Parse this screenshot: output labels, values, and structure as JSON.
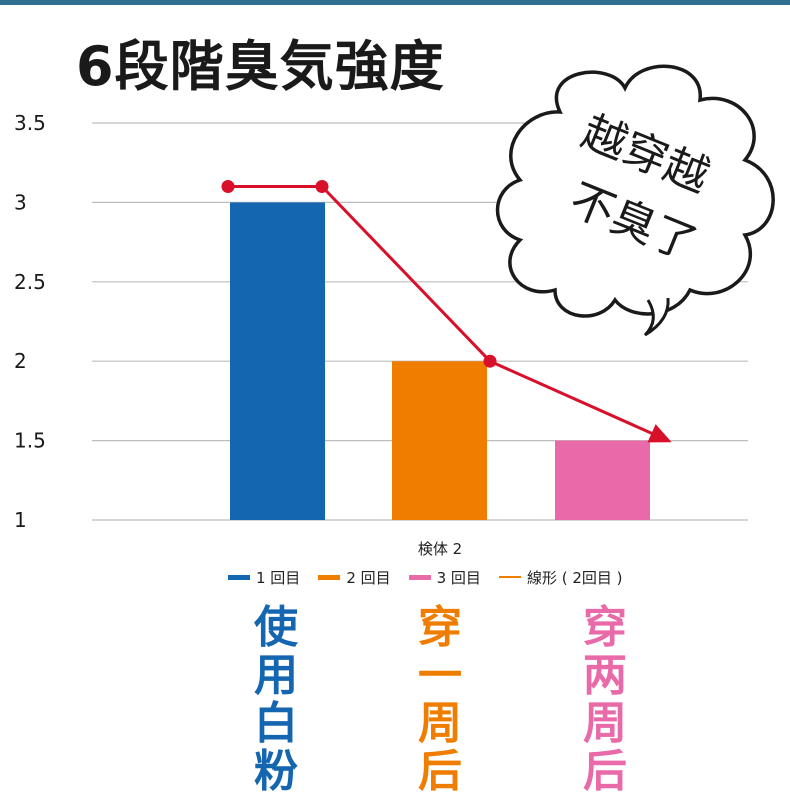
{
  "title": "6段階臭気強度",
  "bubble_text": {
    "line1": "越穿越",
    "line2": "不臭了"
  },
  "colors": {
    "series1": "#1566b0",
    "series2": "#ef7d00",
    "series3": "#e96aa8",
    "line": "#d8102a",
    "grid": "#bdbdbd"
  },
  "chart_data": {
    "type": "bar",
    "xlabel": "検体 2",
    "ylim": [
      1,
      3.5
    ],
    "yticks": [
      "1",
      "1.5",
      "2",
      "2.5",
      "3",
      "3.5"
    ],
    "series": [
      {
        "name": "1 回目",
        "value": 3
      },
      {
        "name": "2 回目",
        "value": 2
      },
      {
        "name": "3 回目",
        "value": 1.5
      }
    ],
    "line_series": {
      "name": "線形 ( 2回目 )",
      "values": [
        3.1,
        3.1,
        2,
        1.5
      ]
    }
  },
  "labels": {
    "col1": "使用白粉",
    "col2": "穿一周后",
    "col3": "穿两周后"
  }
}
